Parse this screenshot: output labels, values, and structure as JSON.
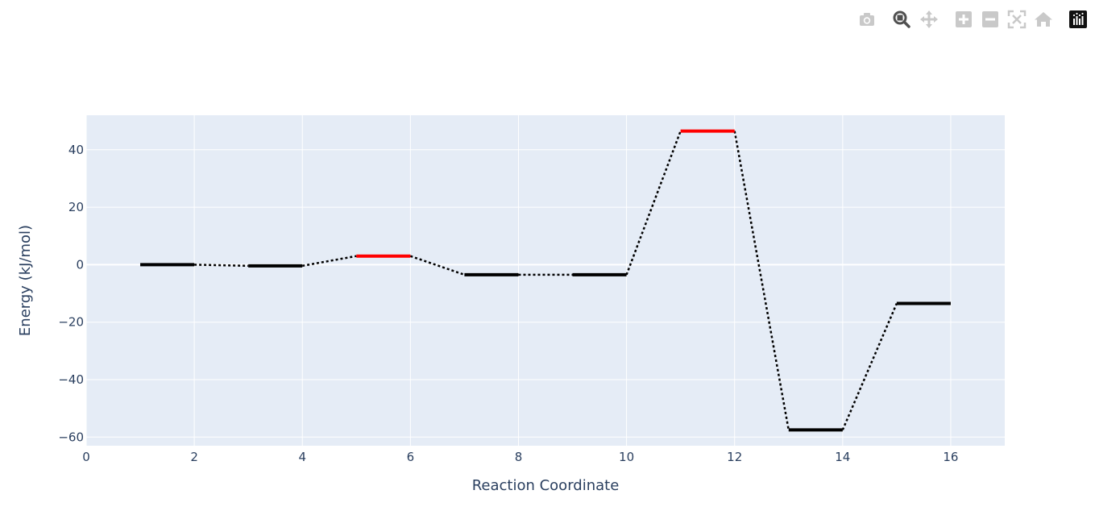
{
  "modebar": {
    "buttons": [
      {
        "name": "camera-icon",
        "title": "Download plot as a png"
      },
      {
        "name": "zoom-icon",
        "title": "Zoom"
      },
      {
        "name": "pan-icon",
        "title": "Pan"
      },
      {
        "name": "zoom-in-icon",
        "title": "Zoom in"
      },
      {
        "name": "zoom-out-icon",
        "title": "Zoom out"
      },
      {
        "name": "autoscale-icon",
        "title": "Autoscale"
      },
      {
        "name": "reset-axes-icon",
        "title": "Reset axes"
      },
      {
        "name": "plotly-logo-icon",
        "title": "Produced with Plotly"
      }
    ]
  },
  "colors": {
    "plot_bg": "#e5ecf6",
    "grid": "#ffffff",
    "text": "#2a3f5f",
    "level": "#000000",
    "transition_state": "#ff0000",
    "connector": "#000000"
  },
  "chart_data": {
    "type": "line",
    "xlabel": "Reaction Coordinate",
    "ylabel": "Energy (kJ/mol)",
    "xlim": [
      0,
      17
    ],
    "ylim": [
      -63,
      52
    ],
    "xticks": [
      0,
      2,
      4,
      6,
      8,
      10,
      12,
      14,
      16
    ],
    "yticks": [
      -60,
      -40,
      -20,
      0,
      20,
      40
    ],
    "grid": true,
    "levels": [
      {
        "x": [
          1,
          2
        ],
        "y": 0.0,
        "kind": "minimum"
      },
      {
        "x": [
          3,
          4
        ],
        "y": -0.4,
        "kind": "minimum"
      },
      {
        "x": [
          5,
          6
        ],
        "y": 3.0,
        "kind": "transition-state"
      },
      {
        "x": [
          7,
          8
        ],
        "y": -3.5,
        "kind": "minimum"
      },
      {
        "x": [
          9,
          10
        ],
        "y": -3.5,
        "kind": "minimum"
      },
      {
        "x": [
          11,
          12
        ],
        "y": 46.5,
        "kind": "transition-state"
      },
      {
        "x": [
          13,
          14
        ],
        "y": -57.5,
        "kind": "minimum"
      },
      {
        "x": [
          15,
          16
        ],
        "y": -13.5,
        "kind": "minimum"
      }
    ]
  }
}
